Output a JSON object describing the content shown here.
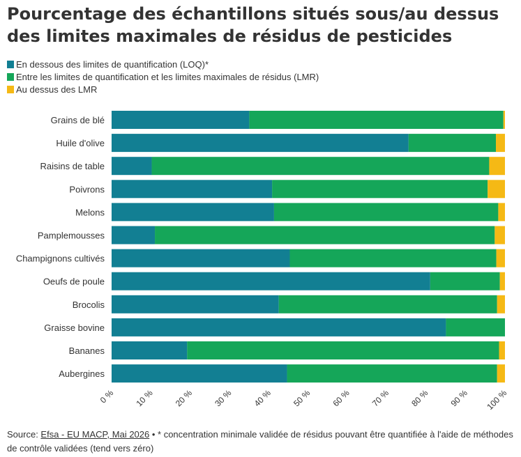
{
  "chart_data": {
    "type": "bar",
    "orientation": "horizontal",
    "stacked": true,
    "title": "Pourcentage des échantillons situés sous/au dessus des limites maximales de résidus de pesticides",
    "categories": [
      "Grains de blé",
      "Huile d'olive",
      "Raisins de table",
      "Poivrons",
      "Melons",
      "Pamplemousses",
      "Champignons cultivés",
      "Oeufs de poule",
      "Brocolis",
      "Graisse bovine",
      "Bananes",
      "Aubergines"
    ],
    "series": [
      {
        "name": "En dessous des limites de quantification (LOQ)*",
        "color": "#127f93",
        "values": [
          35,
          75.5,
          10.2,
          40.8,
          41.3,
          11,
          45.3,
          81,
          42.5,
          85,
          19.2,
          44.6
        ]
      },
      {
        "name": "Entre les limites de quantification et les limites maximales de résidus (LMR)",
        "color": "#15a659",
        "values": [
          64.6,
          22.2,
          85.8,
          54.8,
          57,
          86.4,
          52.5,
          17.7,
          55.5,
          15,
          79.3,
          53.4
        ]
      },
      {
        "name": "Au dessus des LMR",
        "color": "#f5b915",
        "values": [
          0.4,
          2.3,
          4,
          4.4,
          1.7,
          2.6,
          2.2,
          1.3,
          2,
          0,
          1.5,
          2
        ]
      }
    ],
    "xlim": [
      0,
      100
    ],
    "xticks": [
      0,
      10,
      20,
      30,
      40,
      50,
      60,
      70,
      80,
      90,
      100
    ],
    "xtick_labels": [
      "0 %",
      "10 %",
      "20 %",
      "30 %",
      "40 %",
      "50 %",
      "60 %",
      "70 %",
      "80 %",
      "90 %",
      "100 %"
    ],
    "legend_position": "top-left",
    "grid": false
  },
  "footer": {
    "prefix": "Source: ",
    "link": "Efsa - EU MACP, Mai 2026",
    "text": " • * concentration minimale validée de résidus pouvant être quantifiée à l'aide de méthodes de contrôle validées (tend vers zéro)"
  }
}
